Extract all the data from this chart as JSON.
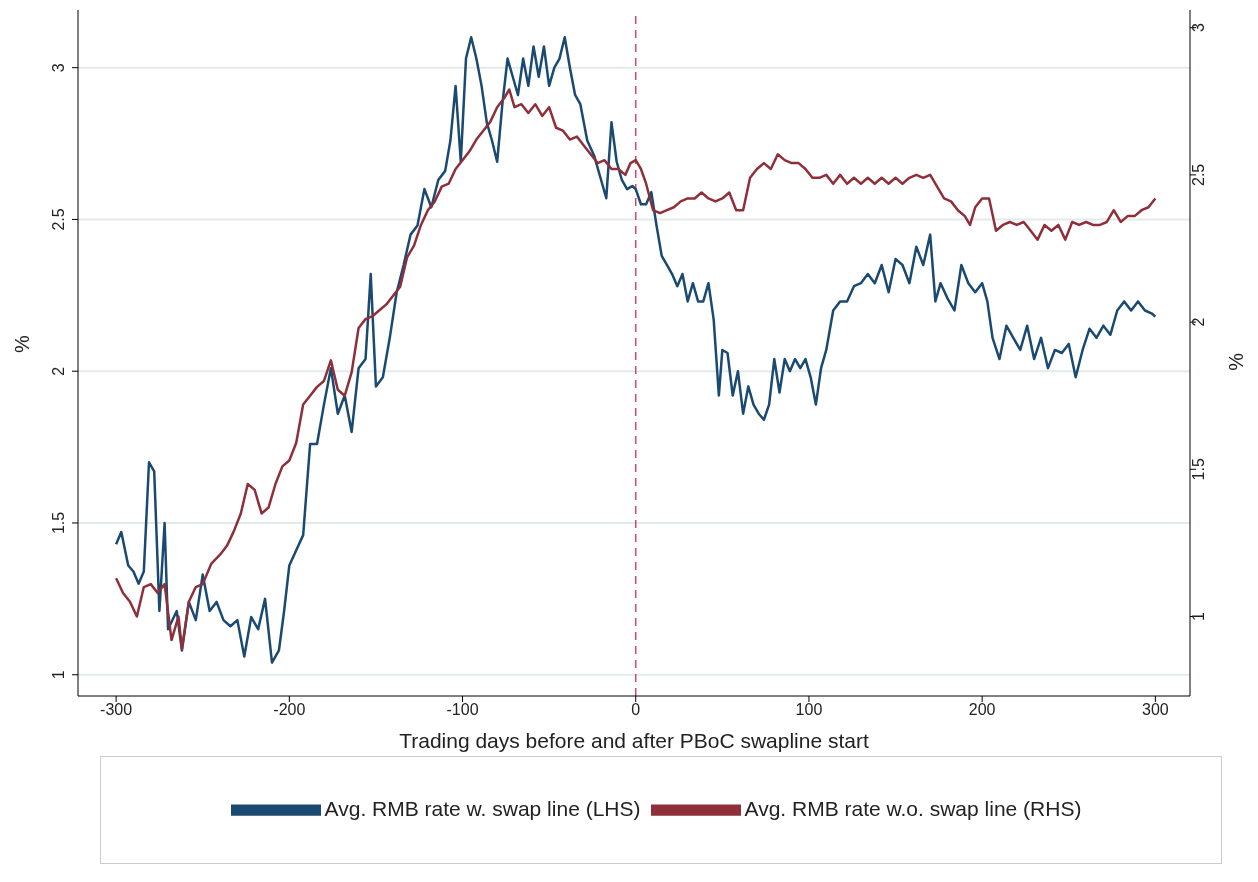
{
  "chart_data": {
    "type": "line",
    "xlabel": "Trading days before and after PBoC swapline start",
    "ylabel": "%",
    "y2label": "%",
    "xlim": [
      -322,
      320
    ],
    "xticks": [
      -300,
      -200,
      -100,
      0,
      100,
      200,
      300
    ],
    "ylim": [
      0.93,
      3.19
    ],
    "yticks": [
      1,
      1.5,
      2,
      2.5,
      3
    ],
    "y2lim": [
      0.73,
      3.06
    ],
    "y2ticks": [
      1,
      1.5,
      2,
      2.5,
      3
    ],
    "grid": "y",
    "legend": "bottom",
    "marker": "none",
    "line_style": "solid",
    "ref_lines": [
      {
        "axis": "x",
        "value": 0,
        "color": "#d6456d",
        "line_style": "dashed"
      }
    ],
    "series": [
      {
        "name": "Avg. RMB rate w. swap line (LHS)",
        "color": "#1a4a72",
        "x": [
          -300,
          -297,
          -293,
          -290,
          -287,
          -284,
          -281,
          -278,
          -275,
          -272,
          -270,
          -265,
          -262,
          -258,
          -254,
          -250,
          -246,
          -242,
          -238,
          -234,
          -230,
          -226,
          -222,
          -218,
          -214,
          -210,
          -206,
          -203,
          -200,
          -196,
          -192,
          -188,
          -184,
          -180,
          -176,
          -172,
          -168,
          -164,
          -160,
          -156,
          -153,
          -150,
          -146,
          -142,
          -138,
          -134,
          -130,
          -126,
          -122,
          -118,
          -114,
          -110,
          -107,
          -104,
          -101,
          -98,
          -95,
          -92,
          -89,
          -86,
          -83,
          -80,
          -77,
          -74,
          -71,
          -68,
          -65,
          -62,
          -59,
          -56,
          -53,
          -50,
          -47,
          -44,
          -41,
          -38,
          -35,
          -32,
          -28,
          -24,
          -20,
          -17,
          -14,
          -11,
          -8,
          -5,
          -2,
          0,
          3,
          6,
          9,
          12,
          15,
          18,
          21,
          24,
          27,
          30,
          33,
          36,
          39,
          42,
          45,
          48,
          50,
          53,
          56,
          59,
          62,
          65,
          68,
          71,
          74,
          77,
          80,
          83,
          86,
          89,
          92,
          95,
          98,
          101,
          104,
          107,
          110,
          114,
          118,
          122,
          126,
          130,
          134,
          138,
          142,
          146,
          150,
          154,
          158,
          162,
          166,
          170,
          173,
          176,
          180,
          184,
          188,
          192,
          196,
          200,
          203,
          206,
          210,
          214,
          218,
          222,
          226,
          230,
          234,
          238,
          242,
          246,
          250,
          254,
          258,
          262,
          266,
          270,
          274,
          278,
          282,
          286,
          290,
          294,
          298,
          300
        ],
        "values": [
          1.43,
          1.47,
          1.36,
          1.34,
          1.3,
          1.34,
          1.7,
          1.67,
          1.21,
          1.5,
          1.15,
          1.21,
          1.08,
          1.24,
          1.18,
          1.33,
          1.21,
          1.24,
          1.18,
          1.16,
          1.18,
          1.06,
          1.19,
          1.15,
          1.25,
          1.04,
          1.08,
          1.21,
          1.36,
          1.41,
          1.46,
          1.76,
          1.76,
          1.89,
          2.01,
          1.86,
          1.92,
          1.8,
          2.01,
          2.04,
          2.32,
          1.95,
          1.98,
          2.11,
          2.26,
          2.35,
          2.45,
          2.48,
          2.6,
          2.54,
          2.63,
          2.66,
          2.76,
          2.94,
          2.69,
          3.03,
          3.1,
          3.03,
          2.94,
          2.82,
          2.76,
          2.69,
          2.88,
          3.03,
          2.97,
          2.91,
          3.03,
          2.94,
          3.07,
          2.97,
          3.07,
          2.94,
          3.0,
          3.03,
          3.1,
          3.0,
          2.91,
          2.88,
          2.76,
          2.71,
          2.63,
          2.57,
          2.82,
          2.69,
          2.63,
          2.6,
          2.61,
          2.6,
          2.55,
          2.55,
          2.59,
          2.48,
          2.38,
          2.35,
          2.32,
          2.28,
          2.32,
          2.23,
          2.29,
          2.23,
          2.23,
          2.29,
          2.17,
          1.92,
          2.07,
          2.06,
          1.92,
          2.0,
          1.86,
          1.95,
          1.89,
          1.86,
          1.84,
          1.89,
          2.04,
          1.93,
          2.04,
          2.0,
          2.04,
          2.01,
          2.04,
          1.98,
          1.89,
          2.01,
          2.07,
          2.2,
          2.23,
          2.23,
          2.28,
          2.29,
          2.32,
          2.29,
          2.35,
          2.26,
          2.37,
          2.35,
          2.29,
          2.41,
          2.35,
          2.45,
          2.23,
          2.29,
          2.24,
          2.2,
          2.35,
          2.29,
          2.26,
          2.29,
          2.23,
          2.11,
          2.04,
          2.15,
          2.11,
          2.07,
          2.15,
          2.04,
          2.11,
          2.01,
          2.07,
          2.06,
          2.09,
          1.98,
          2.07,
          2.14,
          2.11,
          2.15,
          2.12,
          2.2,
          2.23,
          2.2,
          2.23,
          2.2,
          2.19,
          2.18
        ]
      },
      {
        "name": "Avg. RMB rate w.o. swap line (RHS)",
        "color": "#8e2f3a",
        "axis": "y2",
        "x": [
          -300,
          -296,
          -292,
          -288,
          -284,
          -280,
          -276,
          -272,
          -268,
          -264,
          -262,
          -258,
          -254,
          -250,
          -245,
          -240,
          -236,
          -232,
          -228,
          -224,
          -220,
          -216,
          -212,
          -208,
          -204,
          -200,
          -196,
          -192,
          -188,
          -184,
          -180,
          -176,
          -172,
          -168,
          -164,
          -160,
          -156,
          -152,
          -148,
          -144,
          -140,
          -136,
          -132,
          -128,
          -124,
          -120,
          -116,
          -112,
          -108,
          -104,
          -100,
          -96,
          -92,
          -88,
          -84,
          -80,
          -76,
          -73,
          -70,
          -66,
          -62,
          -58,
          -54,
          -50,
          -46,
          -42,
          -38,
          -34,
          -30,
          -26,
          -22,
          -18,
          -14,
          -10,
          -6,
          -3,
          0,
          3,
          6,
          10,
          14,
          18,
          22,
          26,
          30,
          34,
          38,
          42,
          46,
          50,
          54,
          58,
          62,
          66,
          70,
          74,
          78,
          82,
          86,
          90,
          94,
          98,
          102,
          106,
          110,
          114,
          118,
          122,
          126,
          130,
          134,
          138,
          142,
          146,
          150,
          154,
          158,
          162,
          166,
          170,
          174,
          178,
          182,
          186,
          190,
          193,
          196,
          200,
          204,
          208,
          212,
          216,
          220,
          224,
          228,
          232,
          236,
          240,
          244,
          248,
          252,
          256,
          260,
          264,
          268,
          272,
          276,
          280,
          284,
          288,
          292,
          296,
          300
        ],
        "values": [
          1.13,
          1.08,
          1.05,
          1.0,
          1.1,
          1.11,
          1.08,
          1.11,
          0.92,
          1.0,
          0.89,
          1.05,
          1.1,
          1.11,
          1.18,
          1.21,
          1.24,
          1.29,
          1.35,
          1.45,
          1.43,
          1.35,
          1.37,
          1.45,
          1.51,
          1.53,
          1.59,
          1.72,
          1.75,
          1.78,
          1.8,
          1.87,
          1.77,
          1.75,
          1.83,
          1.98,
          2.01,
          2.02,
          2.04,
          2.06,
          2.09,
          2.12,
          2.22,
          2.26,
          2.33,
          2.38,
          2.41,
          2.46,
          2.47,
          2.52,
          2.55,
          2.58,
          2.62,
          2.65,
          2.68,
          2.73,
          2.76,
          2.79,
          2.73,
          2.74,
          2.71,
          2.74,
          2.7,
          2.73,
          2.66,
          2.65,
          2.62,
          2.63,
          2.6,
          2.57,
          2.54,
          2.55,
          2.52,
          2.52,
          2.5,
          2.54,
          2.55,
          2.52,
          2.47,
          2.38,
          2.37,
          2.38,
          2.39,
          2.41,
          2.42,
          2.42,
          2.44,
          2.42,
          2.41,
          2.42,
          2.44,
          2.38,
          2.38,
          2.49,
          2.52,
          2.54,
          2.52,
          2.57,
          2.55,
          2.54,
          2.54,
          2.52,
          2.49,
          2.49,
          2.5,
          2.47,
          2.5,
          2.47,
          2.49,
          2.47,
          2.49,
          2.47,
          2.49,
          2.47,
          2.49,
          2.47,
          2.49,
          2.5,
          2.49,
          2.5,
          2.46,
          2.42,
          2.41,
          2.38,
          2.36,
          2.33,
          2.39,
          2.42,
          2.42,
          2.31,
          2.33,
          2.34,
          2.33,
          2.34,
          2.31,
          2.28,
          2.33,
          2.31,
          2.33,
          2.28,
          2.34,
          2.33,
          2.34,
          2.33,
          2.33,
          2.34,
          2.38,
          2.34,
          2.36,
          2.36,
          2.38,
          2.39,
          2.42
        ]
      }
    ]
  }
}
